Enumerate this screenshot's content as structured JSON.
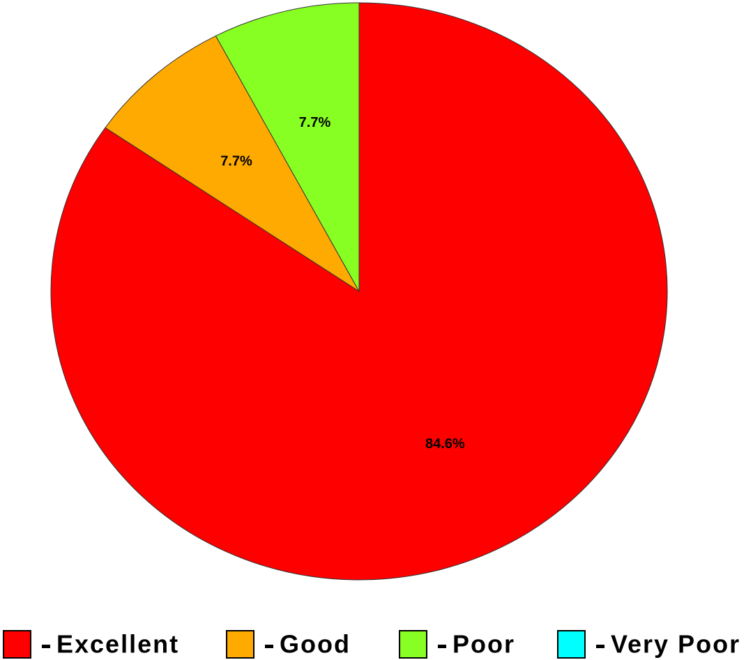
{
  "chart_data": {
    "type": "pie",
    "categories": [
      "Excellent",
      "Good",
      "Poor",
      "Very Poor"
    ],
    "values": [
      84.6,
      7.7,
      7.7,
      0
    ],
    "value_labels": [
      "84.6%",
      "7.7%",
      "7.7%",
      null
    ],
    "colors": [
      "#ff0000",
      "#ffaa00",
      "#88ff22",
      "#00ffff"
    ],
    "legend": "bottom"
  }
}
